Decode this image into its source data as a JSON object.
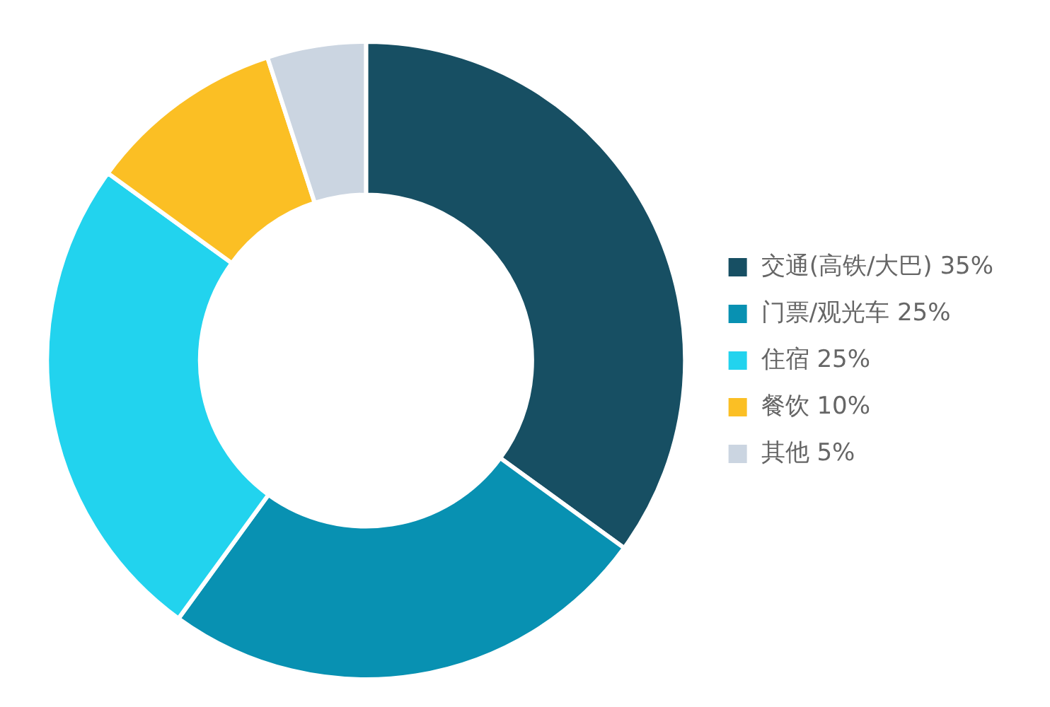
{
  "chart_data": {
    "type": "donut",
    "categories": [
      "交通(高铁/大巴) 35%",
      "门票/观光车 25%",
      "住宿 25%",
      "餐饮 10%",
      "其他 5%"
    ],
    "values": [
      35,
      25,
      25,
      10,
      5
    ],
    "colors": [
      "#174f63",
      "#0891b2",
      "#22d3ee",
      "#fbbf24",
      "#cbd5e1"
    ],
    "legend": "right"
  }
}
